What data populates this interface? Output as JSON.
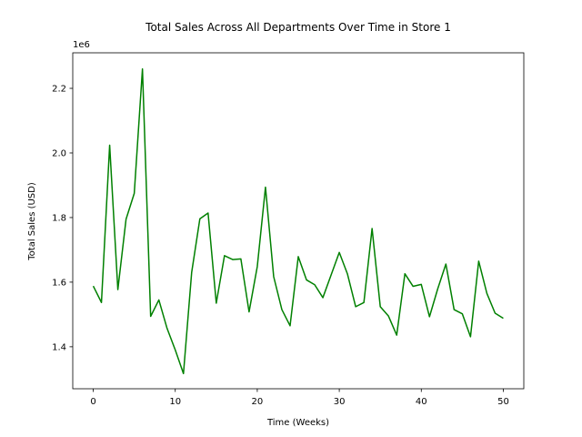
{
  "chart_data": {
    "type": "line",
    "title": "Total Sales Across All Departments Over Time in Store 1",
    "xlabel": "Time (Weeks)",
    "ylabel": "Total Sales (USD)",
    "y_offset_label": "1e6",
    "xlim": [
      -2.5,
      52.5
    ],
    "ylim": [
      1.27,
      2.31
    ],
    "x_ticks": [
      0,
      10,
      20,
      30,
      40,
      50
    ],
    "x_tick_labels": [
      "0",
      "10",
      "20",
      "30",
      "40",
      "50"
    ],
    "y_ticks": [
      1.4,
      1.6,
      1.8,
      2.0,
      2.2
    ],
    "y_tick_labels": [
      "1.4",
      "1.6",
      "1.8",
      "2.0",
      "2.2"
    ],
    "grid": false,
    "series": [
      {
        "color": "#008000",
        "x": [
          0,
          1,
          2,
          3,
          4,
          5,
          6,
          7,
          8,
          9,
          10,
          11,
          12,
          13,
          14,
          15,
          16,
          17,
          18,
          19,
          20,
          21,
          22,
          23,
          24,
          25,
          26,
          27,
          28,
          29,
          30,
          31,
          32,
          33,
          34,
          35,
          36,
          37,
          38,
          39,
          40,
          41,
          42,
          43,
          44,
          45,
          46,
          47,
          48,
          49,
          50
        ],
        "y": [
          1.588,
          1.537,
          2.024,
          1.577,
          1.795,
          1.875,
          2.26,
          1.494,
          1.545,
          1.457,
          1.39,
          1.317,
          1.63,
          1.796,
          1.814,
          1.535,
          1.682,
          1.67,
          1.672,
          1.508,
          1.648,
          1.894,
          1.617,
          1.515,
          1.465,
          1.679,
          1.607,
          1.592,
          1.552,
          1.622,
          1.692,
          1.625,
          1.524,
          1.537,
          1.766,
          1.524,
          1.495,
          1.436,
          1.626,
          1.587,
          1.593,
          1.493,
          1.579,
          1.656,
          1.515,
          1.502,
          1.431,
          1.665,
          1.565,
          1.504,
          1.488
        ]
      }
    ]
  }
}
